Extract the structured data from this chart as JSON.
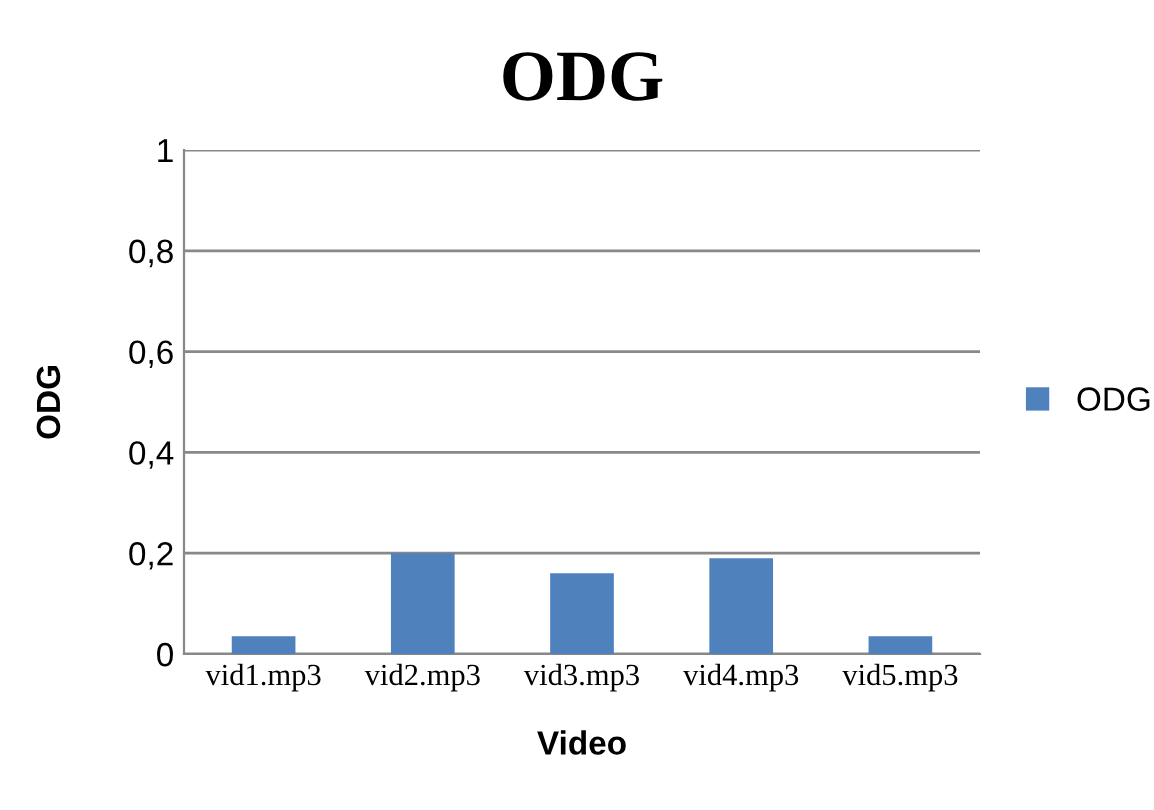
{
  "chart_data": {
    "type": "bar",
    "title": "ODG",
    "xlabel": "Video",
    "ylabel": "ODG",
    "categories": [
      "vid1.mp3",
      "vid2.mp3",
      "vid3.mp3",
      "vid4.mp3",
      "vid5.mp3"
    ],
    "series": [
      {
        "name": "ODG",
        "color": "#4f81bd",
        "values": [
          0.035,
          0.2,
          0.16,
          0.19,
          0.035
        ]
      }
    ],
    "ylim": [
      0,
      1
    ],
    "yticks": [
      0,
      {
        "value": 0.2,
        "label": "0,2"
      },
      {
        "value": 0.4,
        "label": "0,4"
      },
      {
        "value": 0.6,
        "label": "0,6"
      },
      {
        "value": 0.8,
        "label": "0,8"
      },
      1
    ],
    "grid": "y",
    "legend": "right"
  }
}
